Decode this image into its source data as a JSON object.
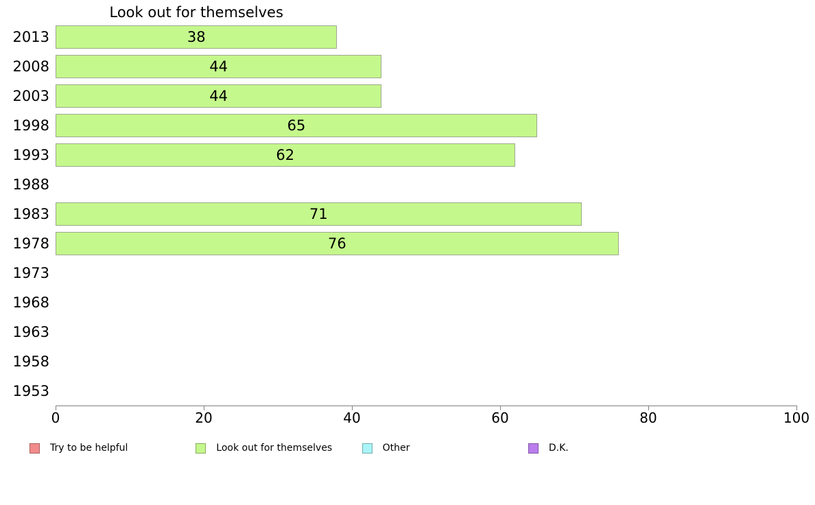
{
  "chart_data": {
    "type": "bar",
    "orientation": "horizontal",
    "title": "Look out for themselves",
    "categories": [
      "2013",
      "2008",
      "2003",
      "1998",
      "1993",
      "1988",
      "1983",
      "1978",
      "1973",
      "1968",
      "1963",
      "1958",
      "1953"
    ],
    "values": [
      38,
      44,
      44,
      65,
      62,
      null,
      71,
      76,
      null,
      null,
      null,
      null,
      null
    ],
    "xlabel": "",
    "ylabel": "",
    "xlim": [
      0,
      100
    ],
    "x_ticks": [
      0,
      20,
      40,
      60,
      80,
      100
    ],
    "grid": false,
    "legend_position": "bottom",
    "colors": {
      "bar_fill": "#c5f88c",
      "bar_border": "#9ba88c",
      "axis": "#808080",
      "text": "#000000"
    },
    "legend": [
      {
        "label": "Try to be helpful",
        "color": "#f28b8b"
      },
      {
        "label": "Look out for themselves",
        "color": "#c5f88c"
      },
      {
        "label": "Other",
        "color": "#a9f5f7"
      },
      {
        "label": "D.K.",
        "color": "#b97ded"
      }
    ]
  }
}
